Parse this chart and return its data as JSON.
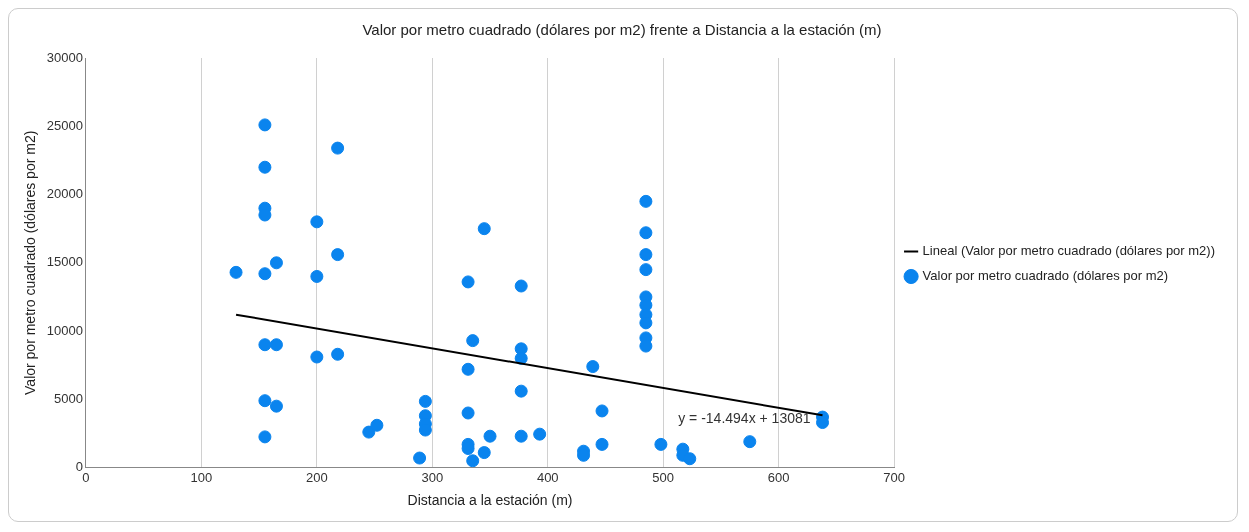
{
  "chart_data": {
    "type": "scatter",
    "title": "Valor por metro cuadrado (dólares por m2) frente a Distancia a la estación (m)",
    "xlabel": "Distancia a la estación (m)",
    "ylabel": "Valor por metro cuadrado (dólares por m2)",
    "xlim": [
      0,
      700
    ],
    "xticks": [
      0,
      100,
      200,
      300,
      400,
      500,
      600,
      700
    ],
    "ylim": [
      0,
      30000
    ],
    "yticks": [
      0,
      5000,
      10000,
      15000,
      20000,
      25000,
      30000
    ],
    "grid": "x",
    "legend": "right",
    "marker": "circle",
    "annotations": [
      "y = -14.494x + 13081"
    ],
    "series": [
      {
        "name": "Valor por metro cuadrado (dólares por m2)",
        "color": "#0a84ee",
        "x": [
          155,
          155,
          155,
          155,
          155,
          155,
          155,
          155,
          165,
          165,
          165,
          130,
          200,
          200,
          200,
          218,
          218,
          218,
          245,
          252,
          289,
          294,
          294,
          294,
          294,
          331,
          331,
          331,
          331,
          331,
          335,
          335,
          345,
          345,
          350,
          377,
          377,
          377,
          377,
          377,
          393,
          431,
          431,
          439,
          447,
          447,
          485,
          485,
          485,
          485,
          485,
          485,
          485,
          485,
          485,
          485,
          498,
          517,
          517,
          523,
          575,
          638,
          638
        ],
        "values": [
          25100,
          22000,
          19000,
          18500,
          14200,
          9000,
          4900,
          2250,
          15000,
          9000,
          4500,
          14300,
          18000,
          14000,
          8100,
          23400,
          15600,
          8300,
          2600,
          3100,
          700,
          4850,
          3800,
          3200,
          2750,
          13600,
          7200,
          4000,
          1700,
          1400,
          9300,
          500,
          17500,
          1100,
          2300,
          13300,
          8700,
          8000,
          5600,
          2300,
          2450,
          1200,
          900,
          7400,
          4150,
          1700,
          19500,
          17200,
          15600,
          14500,
          12500,
          11900,
          11200,
          10600,
          9500,
          8900,
          1700,
          1350,
          900,
          650,
          1900,
          3700,
          3300
        ]
      },
      {
        "name": "Lineal (Valor por metro cuadrado (dólares por m2))",
        "color": "#000000",
        "type": "line",
        "line_style": "solid",
        "marker": "none",
        "x": [
          130,
          638
        ],
        "values": [
          11200,
          3830
        ]
      }
    ]
  }
}
